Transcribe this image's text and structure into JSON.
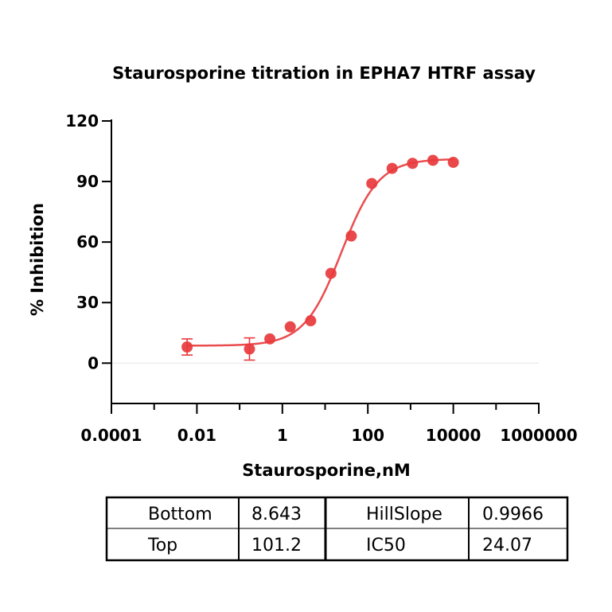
{
  "chart_data": {
    "type": "scatter",
    "title": "Staurosporine titration in EPHA7 HTRF assay",
    "xlabel": "Staurosporine,nM",
    "ylabel": "% Inhibition",
    "x_scale": "log",
    "xlim": [
      0.0001,
      1000000
    ],
    "ylim": [
      -20,
      120
    ],
    "x_ticks": [
      0.0001,
      0.01,
      1,
      100,
      10000,
      1000000
    ],
    "x_tick_labels": [
      "0.0001",
      "0.01",
      "1",
      "100",
      "10000",
      "1000000"
    ],
    "y_ticks": [
      0,
      30,
      60,
      90,
      120
    ],
    "y_tick_labels": [
      "0",
      "30",
      "60",
      "90",
      "120"
    ],
    "series": [
      {
        "color": "#e8393c",
        "x": [
          0.0059,
          0.17,
          0.51,
          1.53,
          4.6,
          13.7,
          41,
          124,
          370,
          1110,
          3330,
          10000
        ],
        "y": [
          8,
          7,
          12,
          18,
          21,
          44.5,
          63,
          89,
          96.5,
          99,
          100.5,
          99.5
        ],
        "err": [
          4,
          5.5,
          0,
          0,
          0,
          0,
          0,
          0,
          0,
          0,
          0,
          0
        ]
      }
    ],
    "fit": {
      "model": "4PL",
      "color": "#e8393c",
      "x_range": [
        0.0059,
        10000
      ]
    },
    "grid": false,
    "zero_line": true
  },
  "params_table": {
    "rows": [
      [
        "Bottom",
        "8.643",
        "HillSlope",
        "0.9966"
      ],
      [
        "Top",
        "101.2",
        "IC50",
        "24.07"
      ]
    ]
  }
}
